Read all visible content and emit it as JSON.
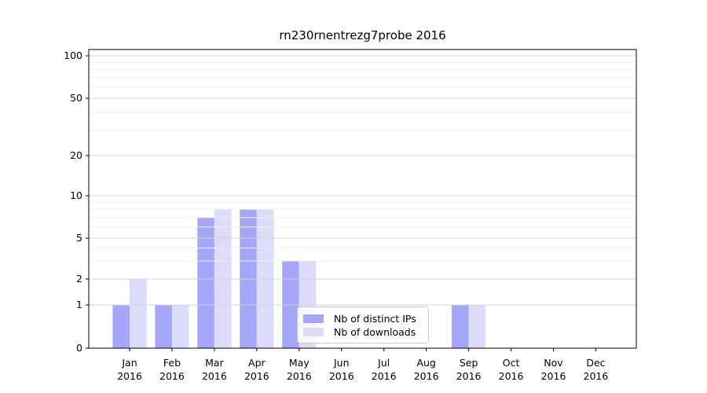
{
  "chart_data": {
    "type": "bar",
    "title": "rn230rnentrezg7probe 2016",
    "categories": [
      "Jan",
      "Feb",
      "Mar",
      "Apr",
      "May",
      "Jun",
      "Jul",
      "Aug",
      "Sep",
      "Oct",
      "Nov",
      "Dec"
    ],
    "category_sublabel": "2016",
    "series": [
      {
        "name": "Nb of distinct IPs",
        "color": "#a6a6f9",
        "values": [
          1,
          1,
          7,
          8,
          3,
          0,
          0,
          0,
          1,
          0,
          0,
          0
        ]
      },
      {
        "name": "Nb of downloads",
        "color": "#dcdcfa",
        "values": [
          2,
          1,
          8,
          8,
          3,
          0,
          0,
          0,
          1,
          0,
          0,
          0
        ]
      }
    ],
    "yscale": "symlog",
    "yticks": [
      0,
      1,
      2,
      5,
      10,
      20,
      50,
      100
    ],
    "yticks_minor": [
      3,
      4,
      6,
      7,
      8,
      9,
      30,
      40,
      60,
      70,
      80,
      90
    ],
    "ylim": [
      0,
      110
    ],
    "xlabel": "",
    "ylabel": "",
    "grid": "horizontal, major and minor",
    "legend_position": "lower center inside axes"
  },
  "style": {
    "bar_color_distinct_ips": "#a6a6f9",
    "bar_color_downloads": "#dcdcfa",
    "grid_major_color": "#d4d4d4",
    "grid_minor_color": "#efefef",
    "axis_color": "#000000",
    "background": "#ffffff"
  }
}
